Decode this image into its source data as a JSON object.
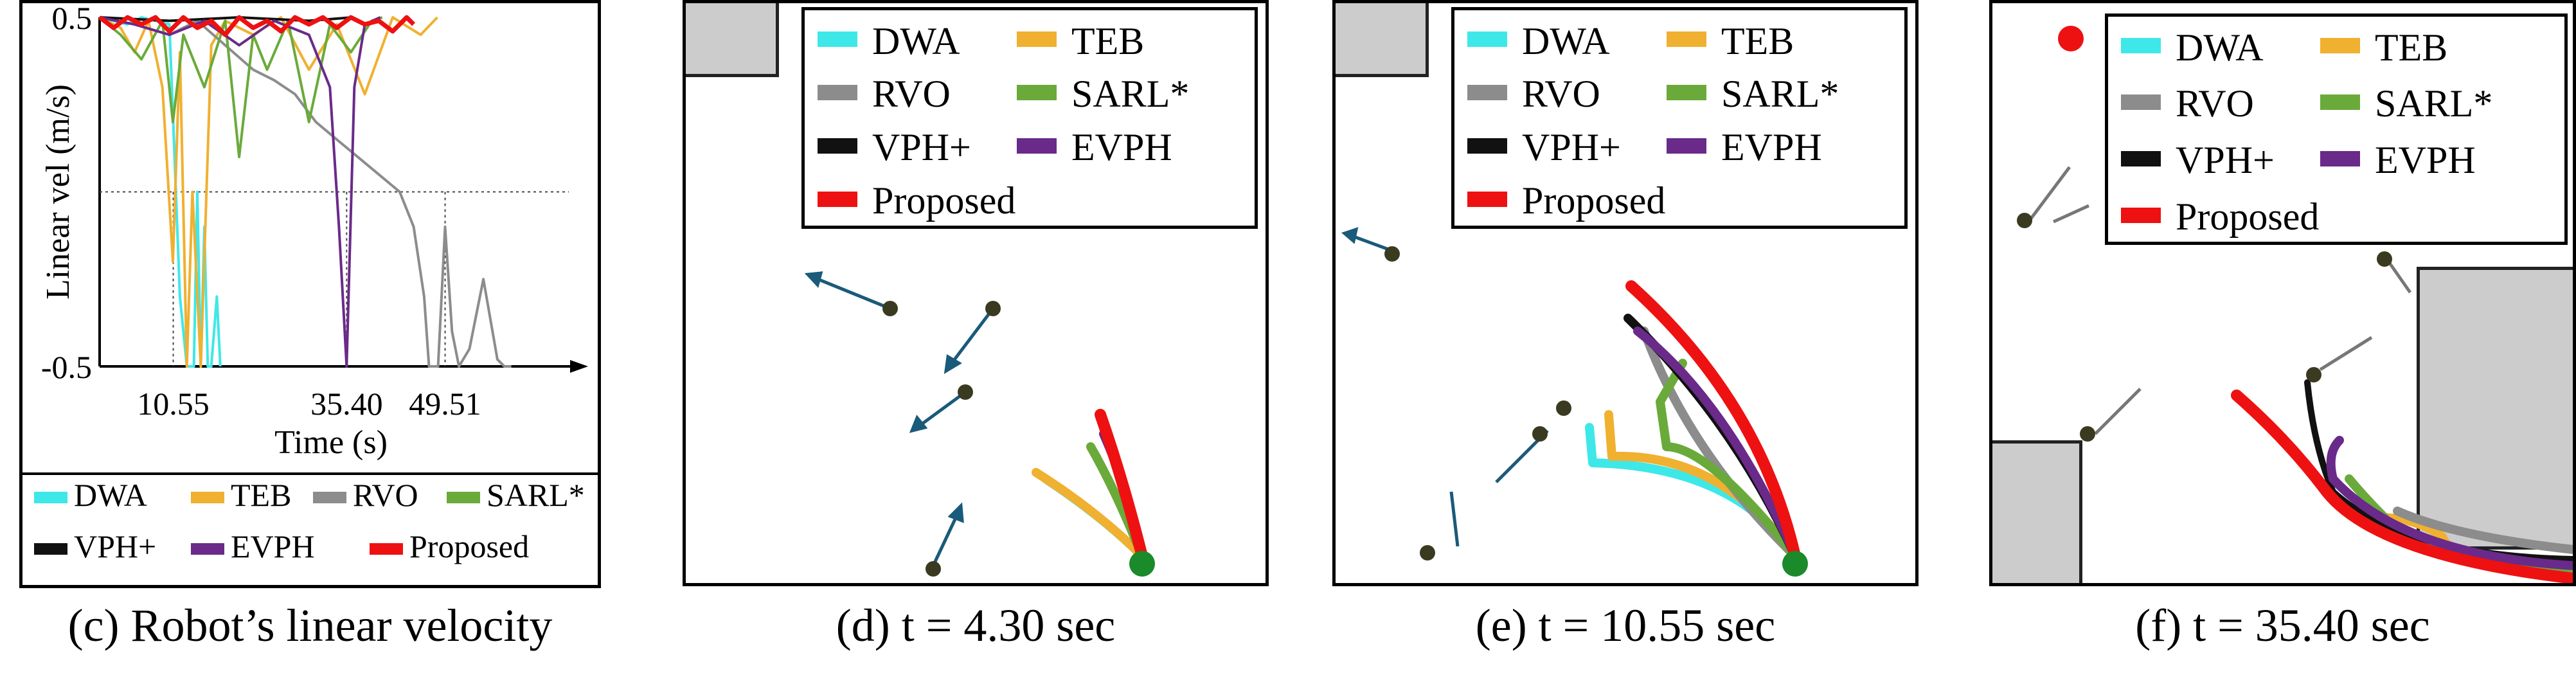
{
  "chart_data": [
    {
      "type": "line",
      "caption": "(c) Robot’s linear velocity",
      "ylabel": "Linear vel (m/s)",
      "xlabel": "Time (s)",
      "ylim": [
        -0.5,
        0.5
      ],
      "xlim": [
        0,
        70
      ],
      "yticks": [
        {
          "value": 0.5,
          "label": "0.5"
        },
        {
          "value": -0.5,
          "label": "-0.5"
        }
      ],
      "xticks": [
        {
          "value": 10.55,
          "label": "10.55"
        },
        {
          "value": 35.4,
          "label": "35.40"
        },
        {
          "value": 49.51,
          "label": "49.51"
        }
      ],
      "series": [
        {
          "name": "DWA",
          "color": "#3ee8e8",
          "x": [
            0,
            2,
            4,
            6,
            8,
            10,
            10.55,
            11.5,
            12.5,
            13.5,
            14.0,
            14.5,
            15.0,
            15.5,
            16.0,
            16.8,
            17.3
          ],
          "y": [
            0.5,
            0.49,
            0.48,
            0.5,
            0.49,
            0.48,
            0.2,
            -0.3,
            -0.5,
            -0.5,
            0.0,
            -0.5,
            -0.1,
            -0.5,
            -0.5,
            -0.3,
            -0.5
          ]
        },
        {
          "name": "TEB",
          "color": "#f0b030",
          "x": [
            0,
            3,
            5,
            7,
            9,
            10.5,
            11.5,
            12.5,
            13.3,
            14.5,
            16,
            18,
            22,
            26,
            30,
            34,
            38,
            42,
            46,
            48.4
          ],
          "y": [
            0.5,
            0.47,
            0.4,
            0.49,
            0.3,
            -0.2,
            0.4,
            -0.5,
            0.0,
            -0.5,
            0.42,
            0.49,
            0.45,
            0.5,
            0.35,
            0.48,
            0.28,
            0.5,
            0.45,
            0.5
          ]
        },
        {
          "name": "RVO",
          "color": "#8c8c8c",
          "x": [
            0,
            5,
            10,
            14,
            18,
            22,
            25,
            28,
            31,
            34,
            37,
            40,
            43,
            45,
            46.5,
            47.2,
            48.5,
            49.51,
            50.5,
            51.5,
            53,
            55,
            57,
            58,
            59
          ],
          "y": [
            0.5,
            0.48,
            0.45,
            0.49,
            0.42,
            0.35,
            0.32,
            0.28,
            0.2,
            0.15,
            0.1,
            0.05,
            0.0,
            -0.1,
            -0.3,
            -0.5,
            -0.5,
            -0.1,
            -0.4,
            -0.5,
            -0.45,
            -0.25,
            -0.48,
            -0.5,
            -0.5
          ]
        },
        {
          "name": "SARL*",
          "color": "#6aaa3a",
          "x": [
            0,
            3,
            6,
            9,
            10.5,
            12,
            15,
            18,
            20,
            22,
            24,
            27,
            30,
            33,
            36,
            39,
            40.5
          ],
          "y": [
            0.5,
            0.45,
            0.38,
            0.49,
            0.2,
            0.45,
            0.3,
            0.49,
            0.1,
            0.45,
            0.35,
            0.49,
            0.2,
            0.48,
            0.4,
            0.49,
            0.5
          ]
        },
        {
          "name": "VPH+",
          "color": "#111111",
          "x": [
            0,
            10,
            20,
            30,
            36.2
          ],
          "y": [
            0.5,
            0.49,
            0.5,
            0.49,
            0.5
          ]
        },
        {
          "name": "EVPH",
          "color": "#6a2a8a",
          "x": [
            0,
            5,
            10,
            15,
            20,
            25,
            30,
            33,
            34.3,
            35.4,
            36.5,
            38,
            40.2
          ],
          "y": [
            0.5,
            0.48,
            0.45,
            0.49,
            0.42,
            0.49,
            0.45,
            0.3,
            -0.1,
            -0.5,
            0.3,
            0.48,
            0.5
          ]
        },
        {
          "name": "Proposed",
          "color": "#ee1111",
          "x": [
            0,
            2,
            4,
            6,
            8,
            10,
            12,
            14,
            16,
            18,
            20,
            22,
            24,
            26,
            28,
            30,
            32,
            34,
            36,
            38,
            40,
            42,
            44,
            45
          ],
          "y": [
            0.5,
            0.47,
            0.5,
            0.48,
            0.5,
            0.46,
            0.5,
            0.47,
            0.49,
            0.45,
            0.5,
            0.47,
            0.49,
            0.46,
            0.5,
            0.48,
            0.5,
            0.47,
            0.5,
            0.48,
            0.49,
            0.46,
            0.5,
            0.48
          ]
        }
      ],
      "legend": {
        "placement": "below",
        "entries": [
          "DWA",
          "TEB",
          "RVO",
          "SARL*",
          "VPH+",
          "EVPH",
          "Proposed"
        ]
      }
    }
  ],
  "scenes": [
    {
      "caption": "(d) t = 4.30 sec",
      "legend": [
        "DWA",
        "TEB",
        "RVO",
        "SARL*",
        "VPH+",
        "EVPH",
        "Proposed"
      ]
    },
    {
      "caption": "(e) t = 10.55 sec",
      "legend": [
        "DWA",
        "TEB",
        "RVO",
        "SARL*",
        "VPH+",
        "EVPH",
        "Proposed"
      ]
    },
    {
      "caption": "(f) t = 35.40 sec",
      "legend": [
        "DWA",
        "TEB",
        "RVO",
        "SARL*",
        "VPH+",
        "EVPH",
        "Proposed"
      ]
    }
  ],
  "colors": {
    "DWA": "#3ee8e8",
    "TEB": "#f0b030",
    "RVO": "#8c8c8c",
    "SARL*": "#6aaa3a",
    "VPH+": "#111111",
    "EVPH": "#6a2a8a",
    "Proposed": "#ee1111",
    "obstacle": "#cccccc",
    "goal": "#1a8a2a",
    "pedestrian_arrow": "#1a5a7a"
  }
}
